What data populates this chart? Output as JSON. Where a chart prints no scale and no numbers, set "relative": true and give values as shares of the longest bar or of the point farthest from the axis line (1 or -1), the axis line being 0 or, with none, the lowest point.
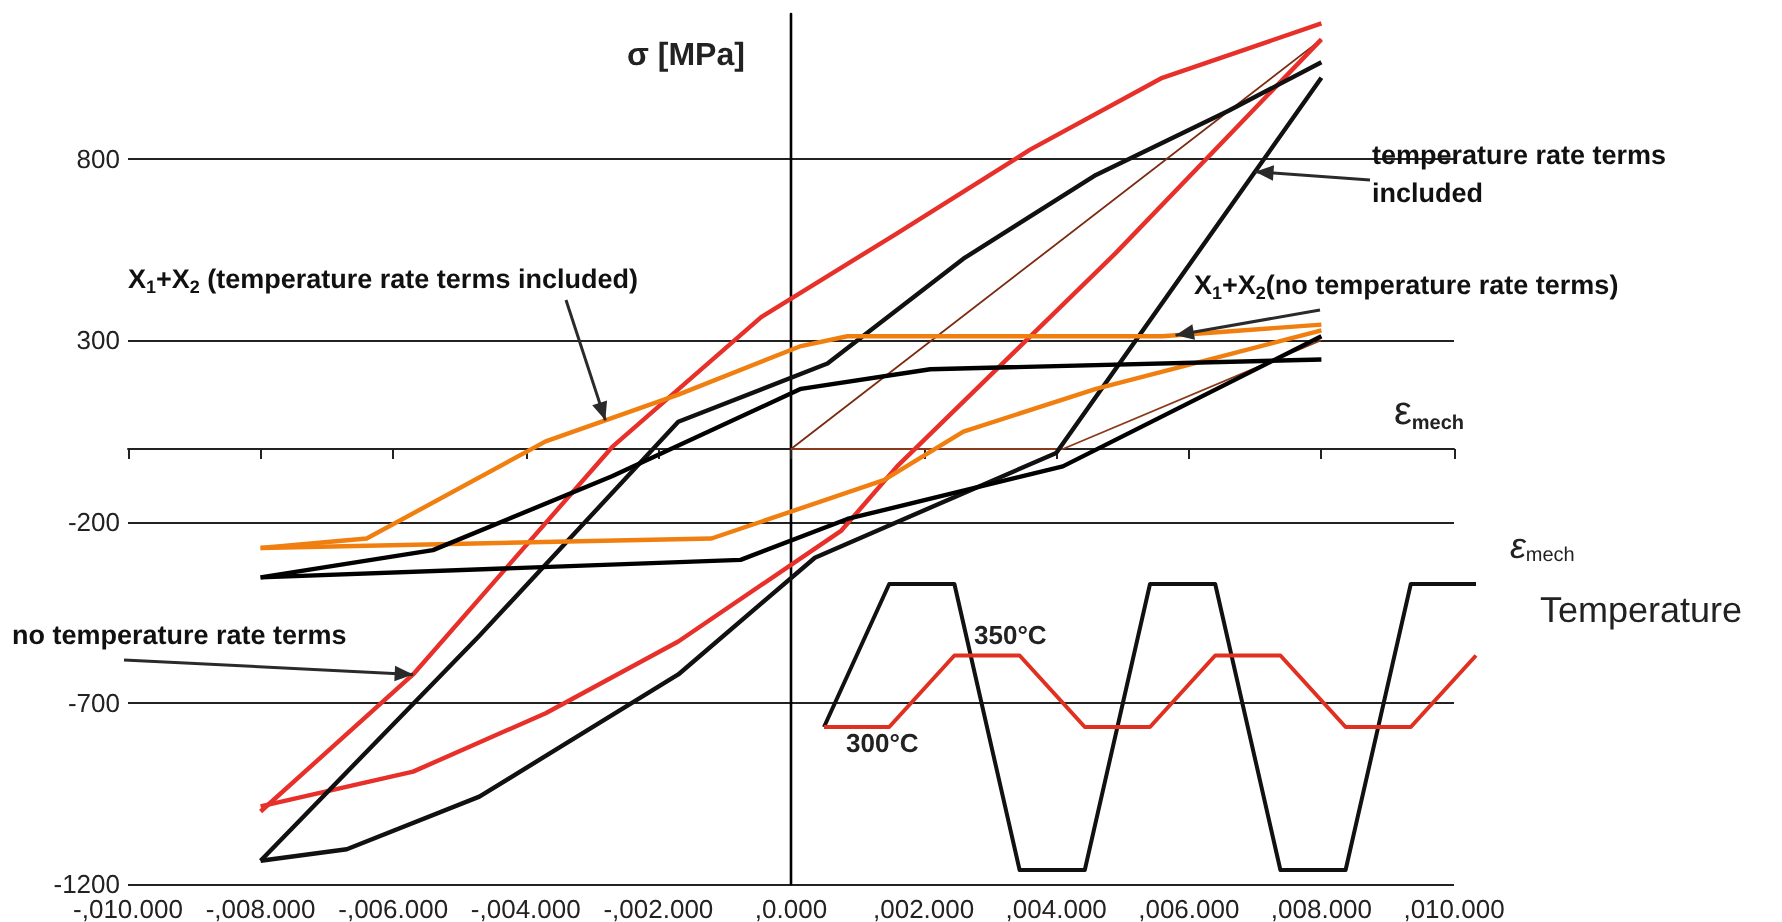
{
  "chart_data": [
    {
      "type": "line",
      "xlabel": "ε$_{mech}$",
      "ylabel": "σ [MPa]",
      "xlim": [
        -10,
        10
      ],
      "ylim": [
        -1200,
        1200
      ],
      "xticks": [
        {
          "value": -10,
          "label": "-,010.000"
        },
        {
          "value": -8,
          "label": "-,008.000"
        },
        {
          "value": -6,
          "label": "-,006.000"
        },
        {
          "value": -4,
          "label": "-,004.000"
        },
        {
          "value": -2,
          "label": "-,002.000"
        },
        {
          "value": 0,
          "label": ",0.000"
        },
        {
          "value": 2,
          "label": ",002.000"
        },
        {
          "value": 4,
          "label": ",004.000"
        },
        {
          "value": 6,
          "label": ",006.000"
        },
        {
          "value": 8,
          "label": ",008.000"
        },
        {
          "value": 10,
          "label": ",010.000"
        }
      ],
      "yticks": [
        -1200,
        -700,
        -200,
        300,
        800
      ],
      "grid": "y",
      "series": [
        {
          "color": "#7a2a10",
          "x": [
            0,
            8
          ],
          "values": [
            0,
            1130
          ]
        },
        {
          "color": "#8a3a1a",
          "x": [
            0,
            4.1,
            8
          ],
          "values": [
            0,
            0,
            300
          ]
        },
        {
          "color": "#e8302a",
          "x": [
            -8,
            -5.7,
            -2.7,
            -0.45,
            1.6,
            3.6,
            5.6,
            8
          ],
          "values": [
            -1000,
            -622,
            5,
            364,
            595,
            825,
            1024,
            1174
          ]
        },
        {
          "color": "#e8302a",
          "x": [
            -8,
            -5.7,
            -3.7,
            -1.7,
            0.76,
            1.6,
            4.9,
            8
          ],
          "values": [
            -986,
            -890,
            -729,
            -531,
            -225,
            -48,
            541,
            1130
          ]
        },
        {
          "color": "#111111",
          "x": [
            -8,
            -4.7,
            -1.7,
            0.55,
            2.6,
            4.6,
            6.6,
            8
          ],
          "values": [
            -1136,
            -515,
            75,
            236,
            525,
            756,
            933,
            1067
          ]
        },
        {
          "color": "#111111",
          "x": [
            -8,
            -6.7,
            -4.7,
            -1.7,
            0.36,
            4,
            8
          ],
          "values": [
            -1136,
            -1104,
            -959,
            -622,
            -300,
            -11,
            1024
          ]
        },
        {
          "color": "#f07f10",
          "x": [
            -8,
            -6.4,
            -3.7,
            -1.7,
            0.15,
            0.85,
            5.6,
            8
          ],
          "values": [
            -273,
            -247,
            21,
            150,
            284,
            311,
            311,
            343
          ]
        },
        {
          "color": "#f07f10",
          "x": [
            -8,
            -1.2,
            1.4,
            2.6,
            4.6,
            8
          ],
          "values": [
            -273,
            -247,
            -86,
            48,
            166,
            327
          ]
        },
        {
          "color": "#000000",
          "x": [
            -8,
            -5.4,
            -2.7,
            0.15,
            2.1,
            8
          ],
          "values": [
            -354,
            -279,
            -75,
            166,
            220,
            247
          ]
        },
        {
          "color": "#000000",
          "x": [
            -8,
            -0.76,
            0.85,
            4.1,
            8
          ],
          "values": [
            -354,
            -306,
            -193,
            -48,
            311
          ]
        }
      ],
      "annotations": [
        {
          "text": "temperature rate terms included",
          "x": 7,
          "y": 765
        },
        {
          "text": "X$_{1}$+X$_{2}$ (temperature rate terms included)",
          "x": -2.8,
          "y": 79
        },
        {
          "text": "X$_{1}$+X$_{2}$(no temperature rate terms)",
          "x": 5.8,
          "y": 314
        },
        {
          "text": "no temperature rate terms",
          "x": -5.7,
          "y": -622
        }
      ]
    },
    {
      "type": "line",
      "relative": true,
      "categories": [
        null,
        null,
        null,
        null,
        null,
        null,
        null,
        null,
        null,
        null,
        null
      ],
      "series": [
        {
          "color": "#111111",
          "values": [
            0.5,
            1,
            1,
            0,
            0,
            1,
            1,
            0,
            0,
            1,
            1
          ]
        },
        {
          "color": "#e03020",
          "values": [
            0.5,
            0.5,
            0.75,
            0.75,
            0.5,
            0.5,
            0.75,
            0.75,
            0.5,
            0.5,
            0.75
          ]
        }
      ],
      "annotations": [
        "ε$_{mech}$",
        "Temperature",
        "350°C",
        "300°C"
      ]
    }
  ]
}
